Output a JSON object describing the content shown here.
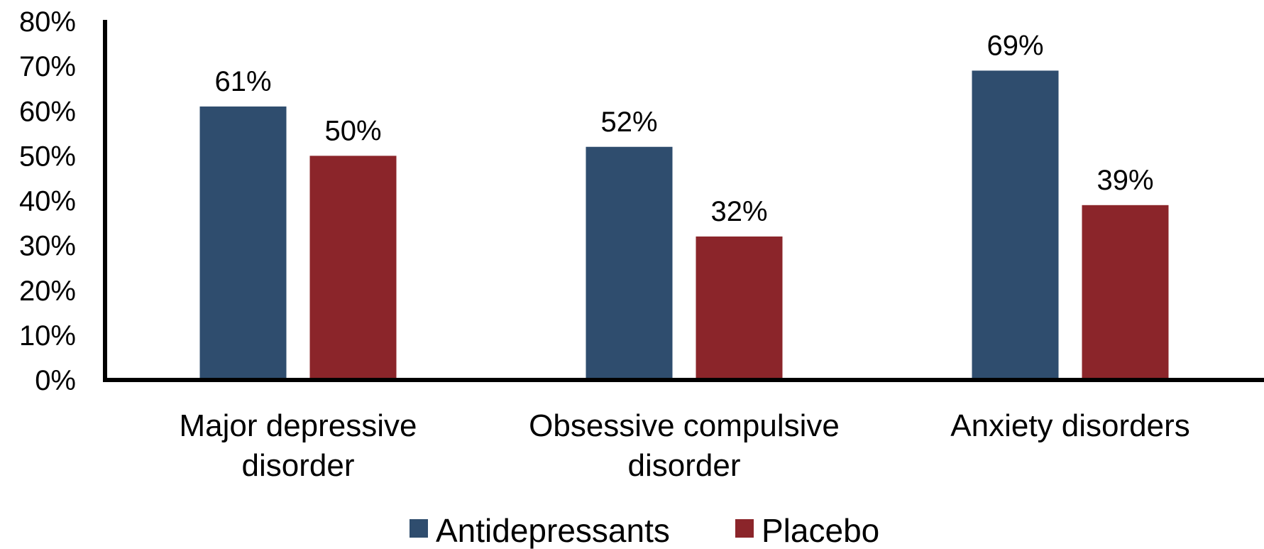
{
  "chart_data": {
    "type": "bar",
    "title": "",
    "xlabel": "",
    "ylabel": "",
    "ylim": [
      0,
      80
    ],
    "y_ticks": [
      "0%",
      "10%",
      "20%",
      "30%",
      "40%",
      "50%",
      "60%",
      "70%",
      "80%"
    ],
    "y_tick_values": [
      0,
      10,
      20,
      30,
      40,
      50,
      60,
      70,
      80
    ],
    "categories": [
      [
        "Major depressive",
        "disorder"
      ],
      [
        "Obsessive compulsive",
        "disorder"
      ],
      [
        "Anxiety disorders"
      ]
    ],
    "series": [
      {
        "name": "Antidepressants",
        "color": "#2f4d6e",
        "values": [
          61,
          52,
          69
        ],
        "labels": [
          "61%",
          "52%",
          "69%"
        ]
      },
      {
        "name": "Placebo",
        "color": "#8b252a",
        "values": [
          50,
          32,
          39
        ],
        "labels": [
          "50%",
          "32%",
          "39%"
        ]
      }
    ],
    "grid": false,
    "legend_position": "bottom"
  }
}
